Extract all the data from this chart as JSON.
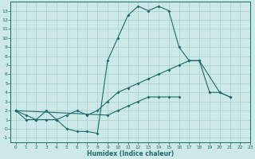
{
  "xlabel": "Humidex (Indice chaleur)",
  "ylabel": "",
  "background_color": "#cce8e8",
  "grid_color": "#aacece",
  "line_color": "#1a6b6b",
  "x_data": [
    0,
    1,
    2,
    3,
    4,
    5,
    6,
    7,
    8,
    9,
    10,
    11,
    12,
    13,
    14,
    15,
    16,
    17,
    18,
    19,
    20,
    21,
    22,
    23
  ],
  "line1_y": [
    2,
    1,
    1,
    2,
    1,
    0,
    -0.3,
    -0.3,
    -0.5,
    7.5,
    10,
    12.5,
    13.5,
    13,
    13.5,
    13,
    9,
    7.5,
    7.5,
    null,
    4,
    3.5,
    null,
    null
  ],
  "line2_y": [
    2,
    1.5,
    1,
    1,
    1,
    1.5,
    2,
    1.5,
    2,
    3,
    4,
    4.5,
    5,
    5.5,
    6,
    6.5,
    7,
    7.5,
    7.5,
    4,
    4,
    3.5,
    null,
    null
  ],
  "line3_y": [
    2,
    null,
    null,
    null,
    null,
    null,
    null,
    null,
    null,
    1.5,
    2,
    2.5,
    3,
    3.5,
    3.5,
    3.5,
    3.5,
    null,
    null,
    null,
    null,
    null,
    null,
    null
  ],
  "xlim": [
    -0.5,
    23
  ],
  "ylim": [
    -1.5,
    14
  ],
  "yticks": [
    -1,
    0,
    1,
    2,
    3,
    4,
    5,
    6,
    7,
    8,
    9,
    10,
    11,
    12,
    13
  ],
  "xticks": [
    0,
    1,
    2,
    3,
    4,
    5,
    6,
    7,
    8,
    9,
    10,
    11,
    12,
    13,
    14,
    15,
    16,
    17,
    18,
    19,
    20,
    21,
    22,
    23
  ]
}
